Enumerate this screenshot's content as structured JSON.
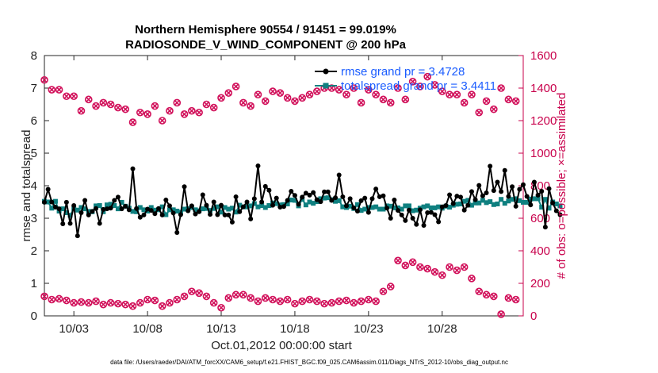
{
  "title_line1": "Northern Hemisphere 90554 / 91451 = 99.019%",
  "title_line2": "RADIOSONDE_V_WIND_COMPONENT @ 200 hPa",
  "xlabel": "Oct.01,2012 00:00:00 start",
  "ylabel_left": "rmse and totalspread",
  "ylabel_right": "# of obs: o=possible; ×=assimilated",
  "footer": "data file: /Users/raeder/DAI/ATM_forcXX/CAM6_setup/f.e21.FHIST_BGC.f09_025.CAM6assim.011/Diags_NTrS_2012-10/obs_diag_output.nc",
  "colors": {
    "rmse": "#000000",
    "spread": "#0f8080",
    "obs": "#d1105a",
    "right_axis": "#c8004b",
    "legend_text": "#1a5cff"
  },
  "chart_data": {
    "type": "line",
    "x_unit": "days since Oct.01,2012 00:00:00",
    "xlim": [
      0,
      32.5
    ],
    "xticks": [
      {
        "x": 2,
        "label": "10/03"
      },
      {
        "x": 7,
        "label": "10/08"
      },
      {
        "x": 12,
        "label": "10/13"
      },
      {
        "x": 17,
        "label": "10/18"
      },
      {
        "x": 22,
        "label": "10/23"
      },
      {
        "x": 27,
        "label": "10/28"
      }
    ],
    "ylim_left": [
      0,
      8
    ],
    "yticks_left": [
      "0",
      "1",
      "2",
      "3",
      "4",
      "5",
      "6",
      "7",
      "8"
    ],
    "ylim_right": [
      0,
      1600
    ],
    "yticks_right": [
      "0",
      "200",
      "400",
      "600",
      "800",
      "1000",
      "1200",
      "1400",
      "1600"
    ],
    "grid": false,
    "legend_position": "top-right",
    "x_step": 0.25,
    "series": [
      {
        "name": "rmse grand pr = 3.4728",
        "axis": "left",
        "marker": "dot",
        "values": [
          3.49,
          3.89,
          3.5,
          3.34,
          3.29,
          2.83,
          3.49,
          2.84,
          3.39,
          2.46,
          3.17,
          3.55,
          3.1,
          3.21,
          3.3,
          2.84,
          3.27,
          3.29,
          3.31,
          3.55,
          3.65,
          3.29,
          3.37,
          3.26,
          4.52,
          3.3,
          3.03,
          3.1,
          3.28,
          3.24,
          3.14,
          3.3,
          3.1,
          3.56,
          3.38,
          3.16,
          2.56,
          3.11,
          3.97,
          3.23,
          3.38,
          3.13,
          3.2,
          3.72,
          3.4,
          3.12,
          3.5,
          3.11,
          3.4,
          3.1,
          3.1,
          2.88,
          3.66,
          3.2,
          3.35,
          3.5,
          2.98,
          3.6,
          4.61,
          3.5,
          3.98,
          3.86,
          3.4,
          3.62,
          3.34,
          3.36,
          3.55,
          3.83,
          3.7,
          3.43,
          3.65,
          3.77,
          3.71,
          3.79,
          3.57,
          3.51,
          3.81,
          3.81,
          3.55,
          3.63,
          4.33,
          3.66,
          3.38,
          3.6,
          3.32,
          3.22,
          3.54,
          3.62,
          3.18,
          3.6,
          3.9,
          3.66,
          3.69,
          3.31,
          3.0,
          3.56,
          3.24,
          3.1,
          2.93,
          3.25,
          3.0,
          2.81,
          3.26,
          2.78,
          3.17,
          3.18,
          3.11,
          2.89,
          3.35,
          3.39,
          3.72,
          3.45,
          3.68,
          3.65,
          3.25,
          3.4,
          3.82,
          3.57,
          4.01,
          3.69,
          3.78,
          4.6,
          3.85,
          4.11,
          3.82,
          4.47,
          3.67,
          3.97,
          3.37,
          3.89,
          4.03,
          3.67,
          3.41,
          4.11,
          3.71,
          3.83,
          2.73,
          3.91,
          3.47,
          3.23,
          3.11
        ]
      },
      {
        "name": "totalspread grand pr = 3.4411",
        "axis": "left",
        "marker": "square",
        "values": [
          3.52,
          3.5,
          3.31,
          3.52,
          3.22,
          3.29,
          3.17,
          3.09,
          3.29,
          3.25,
          3.33,
          3.29,
          3.21,
          3.2,
          3.38,
          3.39,
          3.2,
          3.41,
          3.43,
          3.39,
          3.29,
          3.49,
          3.37,
          3.31,
          3.21,
          3.2,
          3.33,
          3.26,
          3.22,
          3.33,
          3.25,
          3.26,
          3.35,
          3.11,
          3.26,
          3.26,
          3.22,
          3.18,
          3.28,
          3.29,
          3.33,
          3.26,
          3.23,
          3.29,
          3.3,
          3.24,
          3.3,
          3.35,
          3.19,
          3.33,
          3.28,
          3.31,
          3.19,
          3.4,
          3.35,
          3.35,
          3.38,
          3.45,
          3.35,
          3.39,
          3.33,
          3.39,
          3.47,
          3.45,
          3.41,
          3.42,
          3.44,
          3.56,
          3.55,
          3.38,
          3.58,
          3.41,
          3.5,
          3.46,
          3.51,
          3.6,
          3.62,
          3.63,
          3.57,
          3.52,
          3.54,
          3.35,
          3.33,
          3.37,
          3.3,
          3.42,
          3.24,
          3.28,
          3.33,
          3.33,
          3.35,
          3.28,
          3.28,
          3.38,
          3.37,
          3.32,
          3.32,
          3.28,
          3.38,
          3.38,
          3.23,
          3.25,
          3.31,
          3.35,
          3.38,
          3.32,
          3.32,
          3.35,
          3.31,
          3.37,
          3.34,
          3.4,
          3.43,
          3.44,
          3.52,
          3.55,
          3.4,
          3.47,
          3.47,
          3.55,
          3.48,
          3.51,
          3.42,
          3.44,
          3.58,
          3.46,
          3.53,
          3.58,
          3.6,
          3.54,
          3.49,
          3.49,
          3.59,
          3.6,
          3.6,
          3.34,
          3.58,
          3.31,
          3.5,
          3.44,
          3.38
        ]
      },
      {
        "name": "obs possible",
        "axis": "right",
        "marker": "circle",
        "x": [
          0,
          0.5,
          1,
          1.5,
          2,
          2.5,
          3,
          3.5,
          4,
          4.5,
          5,
          5.5,
          6,
          6.5,
          7,
          7.5,
          8,
          8.5,
          9,
          9.5,
          10,
          10.5,
          11,
          11.5,
          12,
          12.5,
          13,
          13.5,
          14,
          14.5,
          15,
          15.5,
          16,
          16.5,
          17,
          17.5,
          18,
          18.5,
          19,
          19.5,
          20,
          20.5,
          21,
          21.5,
          22,
          22.5,
          23,
          23.5,
          24,
          24.5,
          25,
          25.5,
          26,
          26.5,
          27,
          27.5,
          28,
          28.5,
          29,
          29.5,
          30,
          30.5,
          31,
          31.5,
          32
        ],
        "values": [
          1450,
          1390,
          1390,
          1350,
          1350,
          1260,
          1330,
          1290,
          1310,
          1300,
          1280,
          1270,
          1190,
          1250,
          1240,
          1290,
          1200,
          1260,
          1310,
          1240,
          1260,
          1250,
          1300,
          1280,
          1340,
          1370,
          1410,
          1310,
          1290,
          1360,
          1320,
          1380,
          1370,
          1340,
          1320,
          1340,
          1360,
          1380,
          1400,
          1400,
          1390,
          1360,
          1400,
          1310,
          1390,
          1360,
          1330,
          1310,
          1400,
          1330,
          1440,
          1410,
          1470,
          1420,
          1380,
          1360,
          1360,
          1310,
          1360,
          1250,
          1320,
          1270,
          1400,
          1330,
          1320
        ]
      },
      {
        "name": "obs assimilated",
        "axis": "right",
        "marker": "x",
        "x": [
          0,
          0.5,
          1,
          1.5,
          2,
          2.5,
          3,
          3.5,
          4,
          4.5,
          5,
          5.5,
          6,
          6.5,
          7,
          7.5,
          8,
          8.5,
          9,
          9.5,
          10,
          10.5,
          11,
          11.5,
          12,
          12.5,
          13,
          13.5,
          14,
          14.5,
          15,
          15.5,
          16,
          16.5,
          17,
          17.5,
          18,
          18.5,
          19,
          19.5,
          20,
          20.5,
          21,
          21.5,
          22,
          22.5,
          23,
          23.5,
          24,
          24.5,
          25,
          25.5,
          26,
          26.5,
          27,
          27.5,
          28,
          28.5,
          29,
          29.5,
          30,
          30.5,
          31,
          31.5,
          32
        ],
        "values": [
          120,
          100,
          105,
          95,
          80,
          85,
          80,
          90,
          70,
          80,
          75,
          70,
          60,
          80,
          100,
          95,
          60,
          80,
          100,
          120,
          150,
          140,
          120,
          80,
          50,
          110,
          130,
          130,
          110,
          90,
          110,
          100,
          90,
          100,
          75,
          90,
          100,
          90,
          75,
          80,
          90,
          95,
          80,
          90,
          100,
          90,
          150,
          180,
          340,
          310,
          330,
          300,
          290,
          270,
          250,
          300,
          280,
          300,
          230,
          150,
          130,
          120,
          10,
          110,
          100
        ]
      }
    ]
  }
}
